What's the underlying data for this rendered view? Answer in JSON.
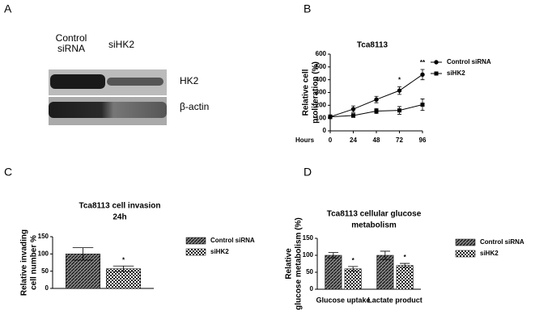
{
  "panel_labels": [
    "A",
    "B",
    "C",
    "D"
  ],
  "blot": {
    "lanes": [
      "Control siRNA",
      "siHK2"
    ],
    "bands": [
      "HK2",
      "β-actin"
    ]
  },
  "chart_data": [
    {
      "type": "line",
      "title": [
        "Tca8113"
      ],
      "xlabel": "Hours",
      "ylabel": [
        "Relative cell",
        "proliferation (%)"
      ],
      "x": [
        0,
        24,
        48,
        72,
        96
      ],
      "xlim": [
        0,
        96
      ],
      "xticks": [
        0,
        24,
        48,
        72,
        96
      ],
      "ylim": [
        0,
        600
      ],
      "yticks": [
        0,
        100,
        200,
        300,
        400,
        500,
        600
      ],
      "series": [
        {
          "name": "Control siRNA",
          "color": "#000000",
          "marker": "circle",
          "values": [
            110,
            170,
            245,
            315,
            440
          ],
          "errors": [
            15,
            25,
            25,
            30,
            40
          ]
        },
        {
          "name": "siHK2",
          "color": "#000000",
          "marker": "square",
          "values": [
            110,
            120,
            155,
            160,
            205
          ],
          "errors": [
            10,
            15,
            20,
            30,
            45
          ]
        }
      ],
      "annotations": [
        {
          "text": "*",
          "x": 72
        },
        {
          "text": "**",
          "x": 96
        }
      ]
    },
    {
      "type": "bar",
      "title": [
        "Tca8113 cell invasion",
        "24h"
      ],
      "ylabel": [
        "Relative invading",
        "cell number %"
      ],
      "categories": [
        null
      ],
      "ylim": [
        0,
        150
      ],
      "yticks": [
        0,
        50,
        100,
        150
      ],
      "series": [
        {
          "name": "Control siRNA",
          "color": "#000000",
          "pattern": "hatch",
          "values": [
            100
          ],
          "errors": [
            18
          ]
        },
        {
          "name": "siHK2",
          "color": "#000000",
          "pattern": "checker",
          "values": [
            57
          ],
          "errors": [
            8
          ]
        }
      ],
      "annotations": [
        {
          "text": "*",
          "series": 1,
          "index": 0
        }
      ]
    },
    {
      "type": "bar",
      "title": [
        "Tca8113 cellular glucose",
        "metabolism"
      ],
      "ylabel": [
        "Relative",
        "glucose metabolism (%)"
      ],
      "categories": [
        "Glucose uptake",
        "Lactate product"
      ],
      "ylim": [
        0,
        150
      ],
      "yticks": [
        0,
        50,
        100,
        150
      ],
      "series": [
        {
          "name": "Control siRNA",
          "color": "#000000",
          "pattern": "hatch",
          "values": [
            100,
            100
          ],
          "errors": [
            8,
            12
          ]
        },
        {
          "name": "siHK2",
          "color": "#000000",
          "pattern": "checker",
          "values": [
            60,
            70
          ],
          "errors": [
            7,
            6
          ]
        }
      ],
      "annotations": [
        {
          "text": "*",
          "series": 1,
          "index": 0
        },
        {
          "text": "*",
          "series": 1,
          "index": 1
        }
      ]
    }
  ]
}
